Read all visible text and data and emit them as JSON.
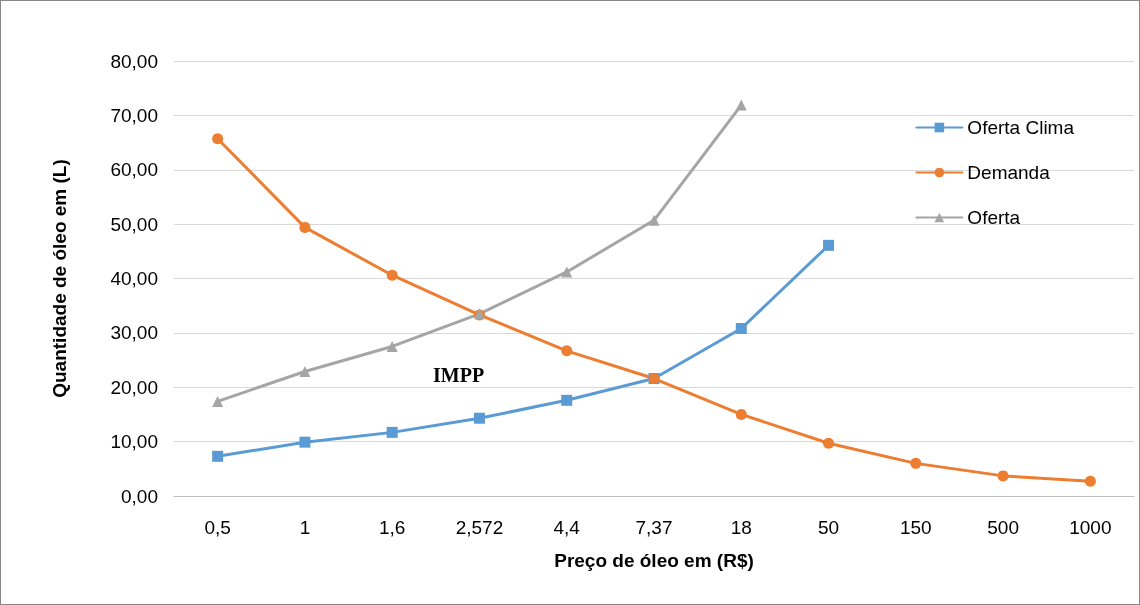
{
  "chart_data": {
    "type": "line",
    "xlabel": "Preço de óleo em (R$)",
    "ylabel": "Quantidade de óleo em (L)",
    "categories": [
      "0,5",
      "1",
      "1,6",
      "2,572",
      "4,4",
      "7,37",
      "18",
      "50",
      "150",
      "500",
      "1000"
    ],
    "series": [
      {
        "name": "Oferta Clima",
        "color": "#5b9bd5",
        "marker": "square",
        "values": [
          7.3,
          9.9,
          11.7,
          14.3,
          17.6,
          21.6,
          30.8,
          46.1,
          null,
          null,
          null
        ]
      },
      {
        "name": "Demanda",
        "color": "#ed7d31",
        "marker": "circle",
        "values": [
          65.7,
          49.4,
          40.6,
          33.3,
          26.7,
          21.6,
          15.0,
          9.7,
          6.0,
          3.7,
          2.7
        ]
      },
      {
        "name": "Oferta",
        "color": "#a5a5a5",
        "marker": "triangle",
        "values": [
          17.4,
          22.9,
          27.5,
          33.5,
          41.2,
          50.7,
          71.9,
          null,
          null,
          null,
          null
        ]
      }
    ],
    "ylim": [
      0,
      80
    ],
    "yticks": [
      {
        "value": 0,
        "label": "0,00"
      },
      {
        "value": 10,
        "label": "10,00"
      },
      {
        "value": 20,
        "label": "20,00"
      },
      {
        "value": 30,
        "label": "30,00"
      },
      {
        "value": 40,
        "label": "40,00"
      },
      {
        "value": 50,
        "label": "50,00"
      },
      {
        "value": 60,
        "label": "60,00"
      },
      {
        "value": 70,
        "label": "70,00"
      },
      {
        "value": 80,
        "label": "80,00"
      }
    ],
    "grid": "y",
    "legend": "top right",
    "line_style": "solid",
    "annotations": [
      "IMPP"
    ]
  }
}
